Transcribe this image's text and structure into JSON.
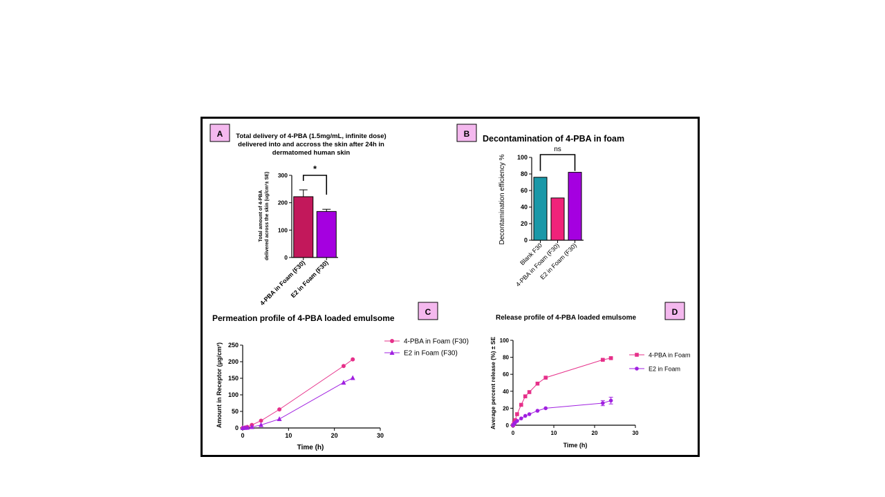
{
  "panels": {
    "A": {
      "letter": "A",
      "title_lines": [
        "Total delivery of 4-PBA (1.5mg/mL, infinite dose)",
        "delivered into and accross the skin after 24h in",
        "dermatomed human skin"
      ],
      "ylabel_lines": [
        "Total amount of 4-PBA",
        "delivered across the skin (ug/cm²± SE)"
      ],
      "significance": "*"
    },
    "B": {
      "letter": "B",
      "title": "Decontamination of 4-PBA in foam",
      "ylabel": "Decontamination efficiency %",
      "significance": "ns"
    },
    "C": {
      "letter": "C",
      "title": "Permeation profile of 4-PBA loaded emulsome",
      "ylabel": "Amount in Receptor (μg/cm²)",
      "xlabel": "Time (h)"
    },
    "D": {
      "letter": "D",
      "title": "Release profile of 4-PBA loaded emulsome",
      "ylabel": "Average percent release (%) ± SE",
      "xlabel": "Time (h)"
    }
  },
  "chart_data": [
    {
      "id": "A",
      "type": "bar",
      "categories": [
        "4-PBA in Foam (F30)",
        "E2 in Foam (F30)"
      ],
      "values": [
        222,
        168
      ],
      "errors": [
        25,
        8
      ],
      "colors": [
        "#c2185b",
        "#a500e0"
      ],
      "ylim": [
        0,
        300
      ],
      "yticks": [
        "0",
        "100",
        "200",
        "300"
      ],
      "significance": {
        "between": [
          0,
          1
        ],
        "label": "*"
      }
    },
    {
      "id": "B",
      "type": "bar",
      "categories": [
        "Blank F30",
        "4-PBA in Foam (F30)",
        "E2 in Foam (F30)"
      ],
      "values": [
        76,
        51,
        82
      ],
      "colors": [
        "#1a98a8",
        "#f0237a",
        "#a500e0"
      ],
      "ylim": [
        0,
        100
      ],
      "yticks": [
        "0",
        "20",
        "40",
        "60",
        "80",
        "100"
      ],
      "significance": {
        "between": [
          0,
          2
        ],
        "label": "ns"
      }
    },
    {
      "id": "C",
      "type": "line",
      "xlim": [
        0,
        30
      ],
      "ylim": [
        0,
        250
      ],
      "xticks": [
        "0",
        "10",
        "20",
        "30"
      ],
      "yticks": [
        "0",
        "50",
        "100",
        "150",
        "200",
        "250"
      ],
      "legend_position": "top-right",
      "series": [
        {
          "name": "4-PBA in Foam (F30)",
          "color": "#e6308a",
          "marker": "circle",
          "x": [
            0,
            0.5,
            1,
            2,
            4,
            8,
            22,
            24
          ],
          "y": [
            0,
            1,
            3,
            9,
            22,
            56,
            187,
            207
          ]
        },
        {
          "name": "E2 in Foam (F30)",
          "color": "#a020e0",
          "marker": "triangle",
          "x": [
            0,
            0.5,
            1,
            2,
            4,
            8,
            22,
            24
          ],
          "y": [
            0,
            0.5,
            1,
            3,
            9,
            27,
            137,
            151
          ]
        }
      ]
    },
    {
      "id": "D",
      "type": "line",
      "xlim": [
        0,
        30
      ],
      "ylim": [
        0,
        100
      ],
      "xticks": [
        "0",
        "10",
        "20",
        "30"
      ],
      "yticks": [
        "0",
        "20",
        "40",
        "60",
        "80",
        "100"
      ],
      "legend_position": "top-right",
      "series": [
        {
          "name": "4-PBA in Foam",
          "color": "#e6308a",
          "marker": "square",
          "x": [
            0,
            0.25,
            0.5,
            1,
            2,
            3,
            4,
            6,
            8,
            22,
            24
          ],
          "y": [
            0,
            3,
            6,
            13,
            24,
            34,
            39,
            49,
            56,
            77,
            79
          ],
          "err": [
            0,
            0,
            0,
            0,
            0,
            0,
            0,
            0,
            0,
            1,
            1
          ]
        },
        {
          "name": "E2 in Foam",
          "color": "#a020e0",
          "marker": "circle",
          "x": [
            0,
            0.25,
            0.5,
            1,
            2,
            3,
            4,
            6,
            8,
            22,
            24
          ],
          "y": [
            0,
            1.5,
            3,
            5,
            8,
            11,
            13,
            17,
            20,
            26,
            29
          ],
          "err": [
            0,
            0,
            0,
            0,
            0,
            0,
            0,
            0,
            0,
            3,
            4
          ]
        }
      ]
    }
  ]
}
